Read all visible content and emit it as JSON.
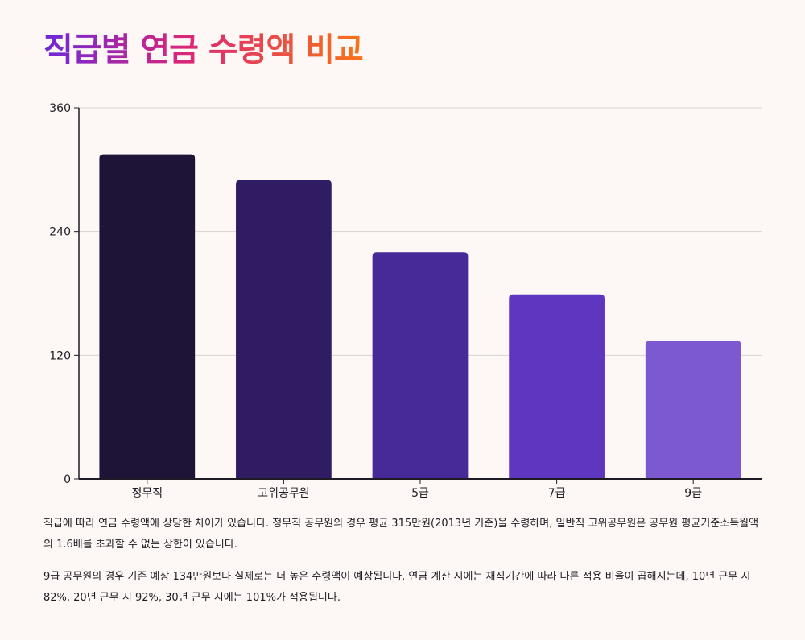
{
  "title": "직급별 연금 수령액 비교",
  "chart_data": {
    "type": "bar",
    "categories": [
      "정무직",
      "고위공무원",
      "5급",
      "7급",
      "9급"
    ],
    "values": [
      315,
      290,
      220,
      179,
      134
    ],
    "ylim": [
      0,
      360
    ],
    "yticks": [
      0,
      120,
      240,
      360
    ],
    "grid": true,
    "colors": [
      "#1e1437",
      "#2f1c63",
      "#472a97",
      "#5e36c0",
      "#7c58d1"
    ]
  },
  "description": {
    "p1": "직급에 따라 연금 수령액에 상당한 차이가 있습니다. 정무직 공무원의 경우 평균 315만원(2013년 기준)을 수령하며, 일반직 고위공무원은 공무원 평균기준소득월액의 1.6배를 초과할 수 없는 상한이 있습니다.",
    "p2": "9급 공무원의 경우 기존 예상 134만원보다 실제로는 더 높은 수령액이 예상됩니다. 연금 계산 시에는 재직기간에 따라 다른 적용 비율이 곱해지는데, 10년 근무 시 82%, 20년 근무 시 92%, 30년 근무 시에는 101%가 적용됩니다."
  }
}
